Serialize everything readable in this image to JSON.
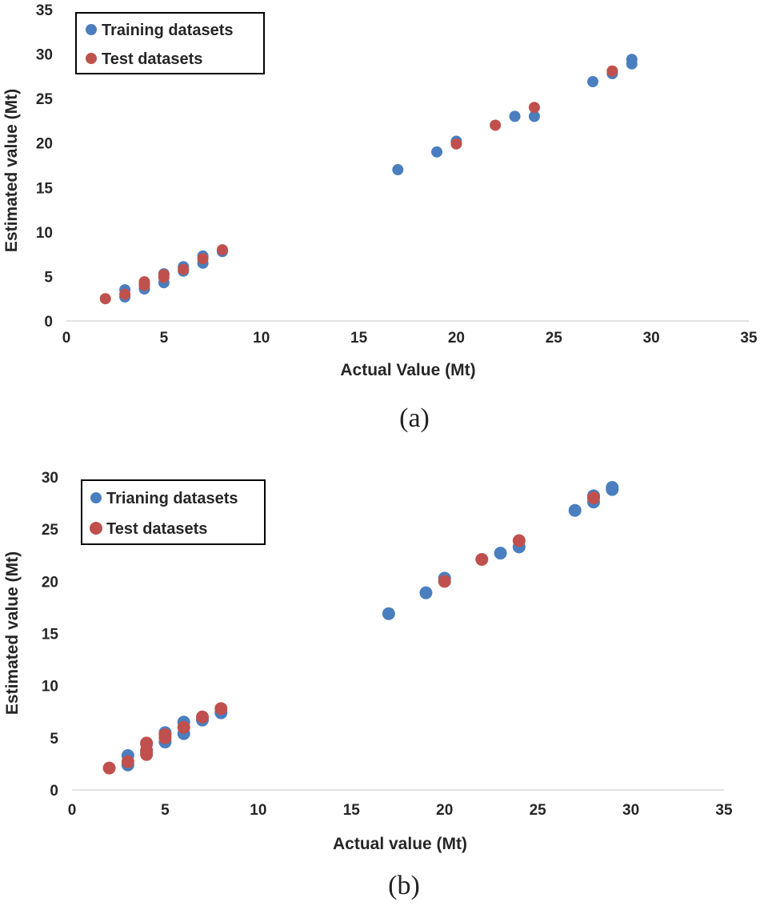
{
  "chart_data": [
    {
      "type": "scatter",
      "panel": "(a)",
      "xlabel": "Actual Value (Mt)",
      "ylabel": "Estimated value (Mt)",
      "xlim": [
        0,
        35
      ],
      "ylim": [
        0,
        35
      ],
      "xticks": [
        0,
        5,
        10,
        15,
        20,
        25,
        30,
        35
      ],
      "yticks": [
        0,
        5,
        10,
        15,
        20,
        25,
        30,
        35
      ],
      "grid": false,
      "legend_position": "top-left",
      "series": [
        {
          "name": "Training datasets",
          "color": "#4a7ebf",
          "points": [
            [
              3,
              2.7
            ],
            [
              3,
              3.5
            ],
            [
              4,
              3.6
            ],
            [
              4,
              4.2
            ],
            [
              5,
              4.3
            ],
            [
              5,
              5.3
            ],
            [
              6,
              5.6
            ],
            [
              6,
              6.1
            ],
            [
              7,
              6.5
            ],
            [
              7,
              7.3
            ],
            [
              8,
              7.8
            ],
            [
              17,
              17.0
            ],
            [
              19,
              19.0
            ],
            [
              20,
              20.2
            ],
            [
              23,
              23.0
            ],
            [
              24,
              23.0
            ],
            [
              27,
              26.9
            ],
            [
              28,
              27.8
            ],
            [
              29,
              28.9
            ],
            [
              29,
              29.4
            ]
          ]
        },
        {
          "name": "Test datasets",
          "color": "#c0504d",
          "points": [
            [
              2,
              2.5
            ],
            [
              3,
              3.0
            ],
            [
              4,
              4.0
            ],
            [
              4,
              4.4
            ],
            [
              5,
              4.9
            ],
            [
              5,
              5.2
            ],
            [
              6,
              5.8
            ],
            [
              7,
              7.0
            ],
            [
              8,
              8.0
            ],
            [
              20,
              19.9
            ],
            [
              22,
              22.0
            ],
            [
              24,
              24.0
            ],
            [
              28,
              28.1
            ]
          ]
        }
      ]
    },
    {
      "type": "scatter",
      "panel": "(b)",
      "xlabel": "Actual value (Mt)",
      "ylabel": "Estimated value (Mt)",
      "xlim": [
        0,
        35
      ],
      "ylim": [
        0,
        30
      ],
      "xticks": [
        0,
        5,
        10,
        15,
        20,
        25,
        30,
        35
      ],
      "yticks": [
        0,
        5,
        10,
        15,
        20,
        25,
        30
      ],
      "grid": false,
      "legend_position": "top-left",
      "series": [
        {
          "name": "Trianing datasets",
          "color": "#4a7ebf",
          "points": [
            [
              3,
              2.4
            ],
            [
              3,
              3.3
            ],
            [
              4,
              3.6
            ],
            [
              4,
              4.4
            ],
            [
              5,
              4.6
            ],
            [
              5,
              5.5
            ],
            [
              6,
              5.4
            ],
            [
              6,
              6.5
            ],
            [
              7,
              6.7
            ],
            [
              8,
              7.4
            ],
            [
              17,
              16.9
            ],
            [
              19,
              18.9
            ],
            [
              20,
              20.3
            ],
            [
              23,
              22.7
            ],
            [
              24,
              23.3
            ],
            [
              27,
              26.8
            ],
            [
              28,
              27.6
            ],
            [
              28,
              28.2
            ],
            [
              29,
              28.8
            ],
            [
              29,
              29.0
            ]
          ]
        },
        {
          "name": "Test datasets",
          "color": "#c0504d",
          "points": [
            [
              2,
              2.1
            ],
            [
              3,
              2.7
            ],
            [
              4,
              3.4
            ],
            [
              4,
              3.8
            ],
            [
              4,
              4.5
            ],
            [
              5,
              5.0
            ],
            [
              5,
              5.3
            ],
            [
              6,
              6.0
            ],
            [
              7,
              7.0
            ],
            [
              8,
              7.8
            ],
            [
              20,
              20.0
            ],
            [
              22,
              22.1
            ],
            [
              24,
              23.9
            ],
            [
              28,
              28.0
            ]
          ]
        }
      ]
    }
  ]
}
